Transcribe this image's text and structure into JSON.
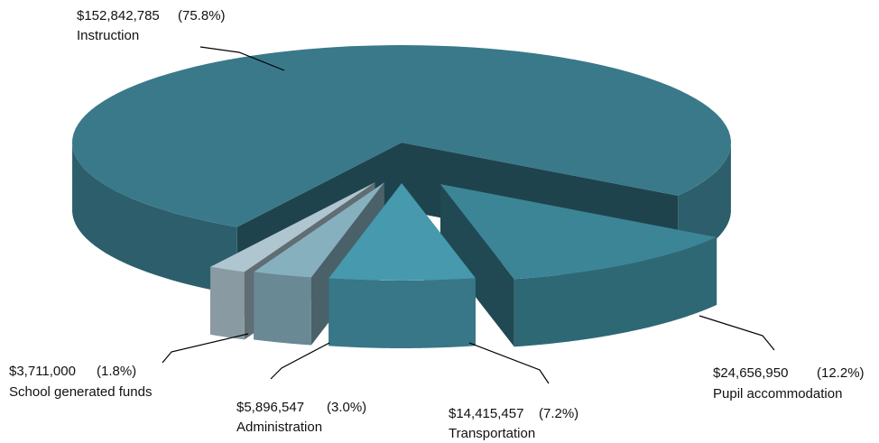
{
  "chart_data": {
    "type": "pie",
    "categories": [
      "Pupil accommodation",
      "Transportation",
      "Administration",
      "School generated funds",
      "Instruction"
    ],
    "values": [
      24656950,
      14415457,
      5896547,
      3711000,
      152842785
    ],
    "value_labels": [
      "$24,656,950",
      "$14,415,457",
      "$5,896,547",
      "$3,711,000",
      "$152,842,785"
    ],
    "percentages": [
      12.2,
      7.2,
      3.0,
      1.8,
      75.8
    ],
    "percent_labels": [
      "(12.2%)",
      "(7.2%)",
      "(3.0%)",
      "(1.8%)",
      "(75.8%)"
    ],
    "colors": [
      "#3c8596",
      "#4799ad",
      "#87b0bf",
      "#afc6d0",
      "#39798a"
    ]
  }
}
